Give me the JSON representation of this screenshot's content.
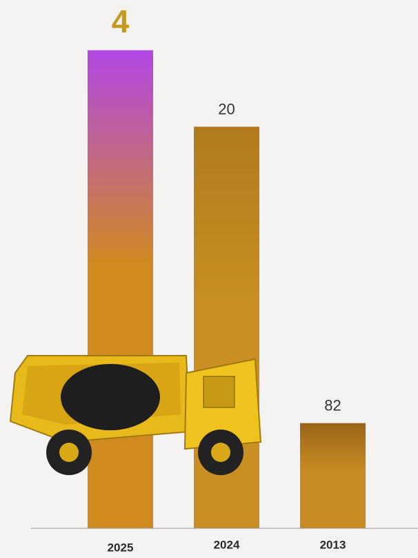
{
  "chart_data": {
    "type": "bar",
    "categories": [
      "2025",
      "2024",
      "2013"
    ],
    "values": [
      4,
      20,
      82
    ],
    "colors": [
      [
        "#b347e6",
        "#d08a1e"
      ],
      [
        "#b17a1c",
        "#c98f22"
      ],
      [
        "#9a6518",
        "#c88a22"
      ]
    ],
    "label_colors": [
      "#c49a1e",
      "#333333",
      "#333333"
    ],
    "ylim": [
      104,
      0
    ]
  }
}
